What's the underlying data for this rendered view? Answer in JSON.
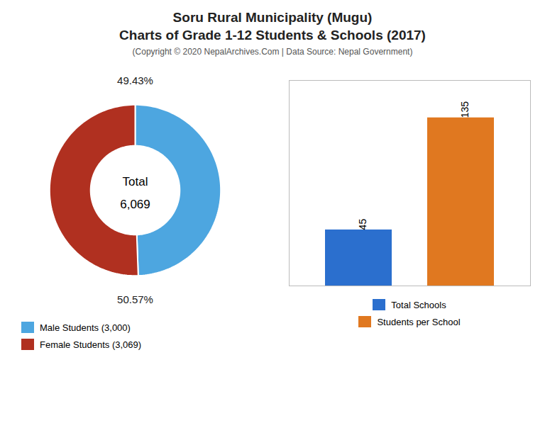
{
  "chart_data": [
    {
      "type": "donut",
      "title": "Soru Rural Municipality (Mugu)\nCharts of Grade 1-12 Students & Schools (2017)",
      "subtitle": "(Copyright © 2020 NepalArchives.Com | Data Source: Nepal Government)",
      "categories": [
        "Male Students (3,000)",
        "Female Students (3,069)"
      ],
      "values": [
        49.43,
        50.57
      ],
      "value_labels": [
        "49.43%",
        "50.57%"
      ],
      "data_labels": true,
      "colors": [
        "#4da6e0",
        "#b03020"
      ],
      "annotations": [
        "Total",
        "6,069"
      ],
      "legend": "lower left"
    },
    {
      "type": "bar",
      "categories": [
        "Total Schools",
        "Students per School"
      ],
      "values": [
        45,
        135
      ],
      "colors": [
        "#2b6fce",
        "#e07820"
      ],
      "data_labels": true,
      "ylim": [
        0,
        165
      ],
      "tick_labels": false,
      "grid": false,
      "legend": "bottom"
    }
  ]
}
